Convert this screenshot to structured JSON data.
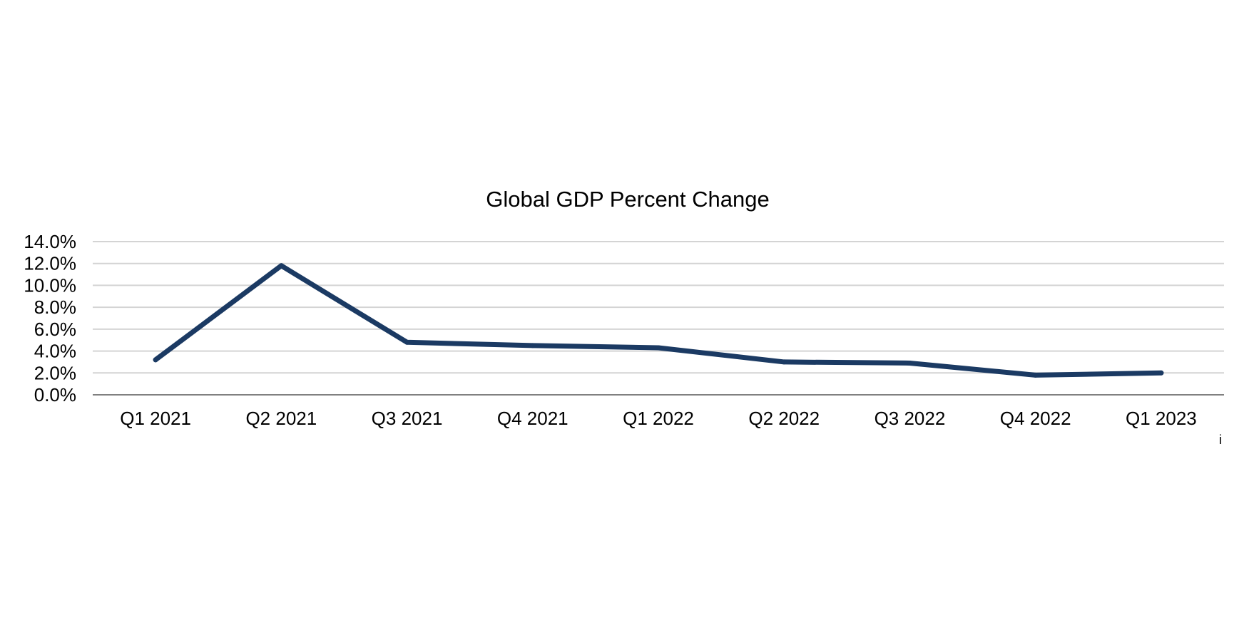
{
  "chart_data": {
    "type": "line",
    "title": "Global GDP Percent Change",
    "categories": [
      "Q1 2021",
      "Q2 2021",
      "Q3 2021",
      "Q4 2021",
      "Q1 2022",
      "Q2 2022",
      "Q3 2022",
      "Q4 2022",
      "Q1 2023"
    ],
    "series": [
      {
        "color": "#1b3a63",
        "values": [
          3.2,
          11.8,
          4.8,
          4.5,
          4.3,
          3.0,
          2.9,
          1.8,
          2.0
        ]
      }
    ],
    "ylim": [
      0,
      14
    ],
    "yticks": [
      "0.0%",
      "2.0%",
      "4.0%",
      "6.0%",
      "8.0%",
      "10.0%",
      "12.0%",
      "14.0%"
    ],
    "grid": true,
    "legend": "none",
    "colors": {
      "grid": "#d4d4d4",
      "axis": "#808080"
    }
  },
  "footnote_mark": "i"
}
